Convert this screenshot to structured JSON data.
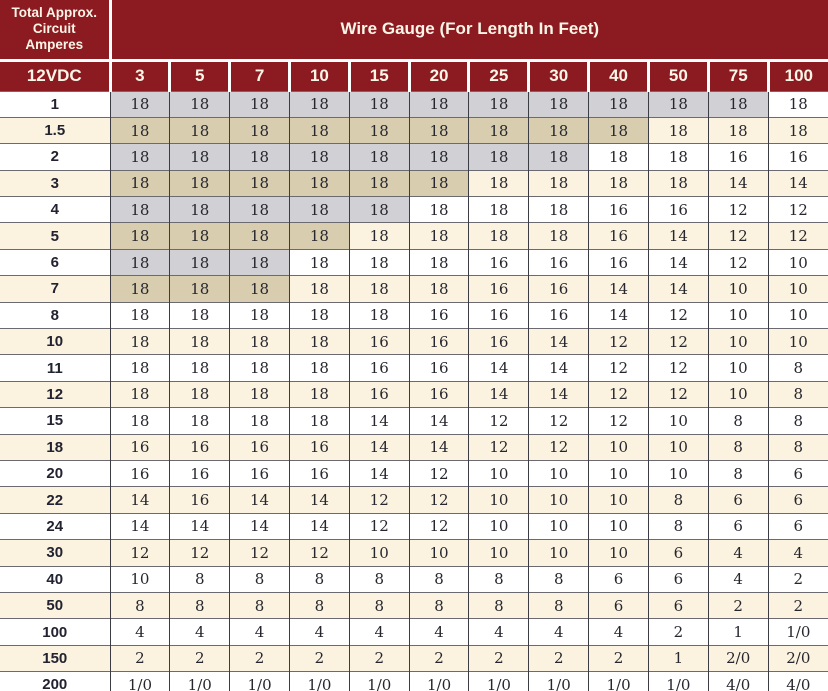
{
  "header": {
    "corner_lines": [
      "Total Approx.",
      "Circuit",
      "Amperes"
    ],
    "gauge_title": "Wire Gauge (For Length In Feet)",
    "voltage_label": "12VDC",
    "length_columns": [
      "3",
      "5",
      "7",
      "10",
      "15",
      "20",
      "25",
      "30",
      "40",
      "50",
      "75",
      "100"
    ]
  },
  "rows": [
    {
      "amps": "1",
      "gauges": [
        "18",
        "18",
        "18",
        "18",
        "18",
        "18",
        "18",
        "18",
        "18",
        "18",
        "18",
        "18"
      ],
      "shaded": 11
    },
    {
      "amps": "1.5",
      "gauges": [
        "18",
        "18",
        "18",
        "18",
        "18",
        "18",
        "18",
        "18",
        "18",
        "18",
        "18",
        "18"
      ],
      "shaded": 9
    },
    {
      "amps": "2",
      "gauges": [
        "18",
        "18",
        "18",
        "18",
        "18",
        "18",
        "18",
        "18",
        "18",
        "18",
        "16",
        "16"
      ],
      "shaded": 8
    },
    {
      "amps": "3",
      "gauges": [
        "18",
        "18",
        "18",
        "18",
        "18",
        "18",
        "18",
        "18",
        "18",
        "18",
        "14",
        "14"
      ],
      "shaded": 6
    },
    {
      "amps": "4",
      "gauges": [
        "18",
        "18",
        "18",
        "18",
        "18",
        "18",
        "18",
        "18",
        "16",
        "16",
        "12",
        "12"
      ],
      "shaded": 5
    },
    {
      "amps": "5",
      "gauges": [
        "18",
        "18",
        "18",
        "18",
        "18",
        "18",
        "18",
        "18",
        "16",
        "14",
        "12",
        "12"
      ],
      "shaded": 4
    },
    {
      "amps": "6",
      "gauges": [
        "18",
        "18",
        "18",
        "18",
        "18",
        "18",
        "16",
        "16",
        "16",
        "14",
        "12",
        "10"
      ],
      "shaded": 3
    },
    {
      "amps": "7",
      "gauges": [
        "18",
        "18",
        "18",
        "18",
        "18",
        "18",
        "16",
        "16",
        "14",
        "14",
        "10",
        "10"
      ],
      "shaded": 3
    },
    {
      "amps": "8",
      "gauges": [
        "18",
        "18",
        "18",
        "18",
        "18",
        "16",
        "16",
        "16",
        "14",
        "12",
        "10",
        "10"
      ],
      "shaded": 0
    },
    {
      "amps": "10",
      "gauges": [
        "18",
        "18",
        "18",
        "18",
        "16",
        "16",
        "16",
        "14",
        "12",
        "12",
        "10",
        "10"
      ],
      "shaded": 0
    },
    {
      "amps": "11",
      "gauges": [
        "18",
        "18",
        "18",
        "18",
        "16",
        "16",
        "14",
        "14",
        "12",
        "12",
        "10",
        "8"
      ],
      "shaded": 0
    },
    {
      "amps": "12",
      "gauges": [
        "18",
        "18",
        "18",
        "18",
        "16",
        "16",
        "14",
        "14",
        "12",
        "12",
        "10",
        "8"
      ],
      "shaded": 0
    },
    {
      "amps": "15",
      "gauges": [
        "18",
        "18",
        "18",
        "18",
        "14",
        "14",
        "12",
        "12",
        "12",
        "10",
        "8",
        "8"
      ],
      "shaded": 0
    },
    {
      "amps": "18",
      "gauges": [
        "16",
        "16",
        "16",
        "16",
        "14",
        "14",
        "12",
        "12",
        "10",
        "10",
        "8",
        "8"
      ],
      "shaded": 0
    },
    {
      "amps": "20",
      "gauges": [
        "16",
        "16",
        "16",
        "16",
        "14",
        "12",
        "10",
        "10",
        "10",
        "10",
        "8",
        "6"
      ],
      "shaded": 0
    },
    {
      "amps": "22",
      "gauges": [
        "14",
        "16",
        "14",
        "14",
        "12",
        "12",
        "10",
        "10",
        "10",
        "8",
        "6",
        "6"
      ],
      "shaded": 0
    },
    {
      "amps": "24",
      "gauges": [
        "14",
        "14",
        "14",
        "14",
        "12",
        "12",
        "10",
        "10",
        "10",
        "8",
        "6",
        "6"
      ],
      "shaded": 0
    },
    {
      "amps": "30",
      "gauges": [
        "12",
        "12",
        "12",
        "12",
        "10",
        "10",
        "10",
        "10",
        "10",
        "6",
        "4",
        "4"
      ],
      "shaded": 0
    },
    {
      "amps": "40",
      "gauges": [
        "10",
        "8",
        "8",
        "8",
        "8",
        "8",
        "8",
        "8",
        "6",
        "6",
        "4",
        "2"
      ],
      "shaded": 0
    },
    {
      "amps": "50",
      "gauges": [
        "8",
        "8",
        "8",
        "8",
        "8",
        "8",
        "8",
        "8",
        "6",
        "6",
        "2",
        "2"
      ],
      "shaded": 0
    },
    {
      "amps": "100",
      "gauges": [
        "4",
        "4",
        "4",
        "4",
        "4",
        "4",
        "4",
        "4",
        "4",
        "2",
        "1",
        "1/0"
      ],
      "shaded": 0
    },
    {
      "amps": "150",
      "gauges": [
        "2",
        "2",
        "2",
        "2",
        "2",
        "2",
        "2",
        "2",
        "2",
        "1",
        "2/0",
        "2/0"
      ],
      "shaded": 0
    },
    {
      "amps": "200",
      "gauges": [
        "1/0",
        "1/0",
        "1/0",
        "1/0",
        "1/0",
        "1/0",
        "1/0",
        "1/0",
        "1/0",
        "1/0",
        "4/0",
        "4/0"
      ],
      "shaded": 0
    }
  ],
  "colors": {
    "header_maroon": "#8B1B20",
    "cream_row": "#FBF3DF",
    "white_row": "#FFFFFF",
    "gray_shade": "#D1D1D5",
    "tan_shade": "#D8CEAF",
    "bottom_bar": "#7E1317",
    "bottom_strip": "#DADADA"
  }
}
